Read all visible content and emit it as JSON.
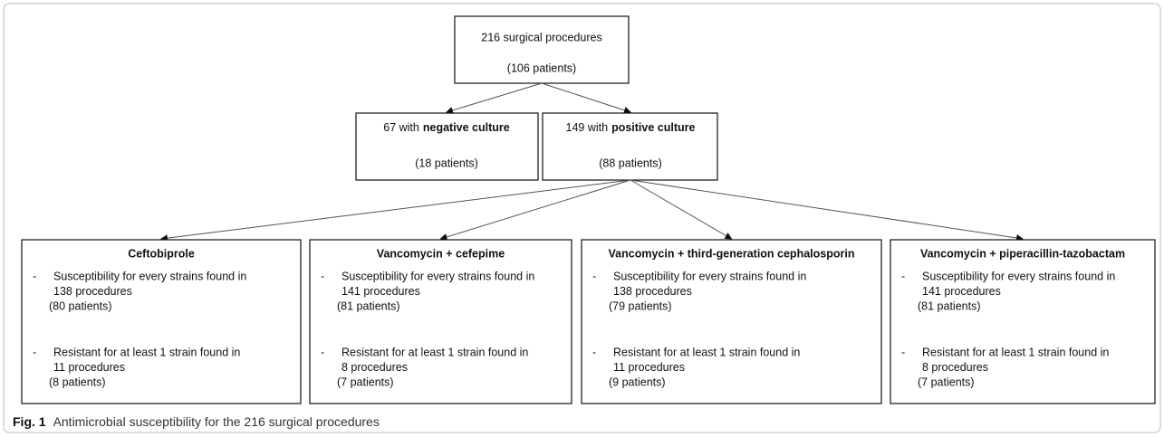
{
  "top": {
    "line1": "216 surgical procedures",
    "line2": "(106 patients)"
  },
  "negative": {
    "prefix": "67 with",
    "emphasis": "negative culture",
    "patients": "(18 patients)"
  },
  "positive": {
    "prefix": "149 with",
    "emphasis": "positive culture",
    "patients": "(88 patients)"
  },
  "bullet": "-",
  "regimens": [
    {
      "title": "Ceftobiprole",
      "items": [
        [
          "Susceptibility for every strains found in",
          "138 procedures",
          "(80 patients)"
        ],
        [
          "Resistant for at least 1 strain found in",
          "11 procedures",
          "(8 patients)"
        ]
      ]
    },
    {
      "title": "Vancomycin + cefepime",
      "items": [
        [
          "Susceptibility for every strains found in",
          "141 procedures",
          "(81 patients)"
        ],
        [
          "Resistant for at least 1 strain found in",
          "8 procedures",
          "(7 patients)"
        ]
      ]
    },
    {
      "title": "Vancomycin + third-generation cephalosporin",
      "items": [
        [
          "Susceptibility for every strains found in",
          "138 procedures",
          "(79 patients)"
        ],
        [
          "Resistant for at least 1 strain found in",
          "11 procedures",
          "(9 patients)"
        ]
      ]
    },
    {
      "title": "Vancomycin + piperacillin-tazobactam",
      "items": [
        [
          "Susceptibility for every strains found in",
          "141 procedures",
          "(81 patients)"
        ],
        [
          "Resistant for at least 1 strain found in",
          "8 procedures",
          "(7 patients)"
        ]
      ]
    }
  ],
  "caption": {
    "label": "Fig. 1",
    "text": "Antimicrobial susceptibility for the 216 surgical procedures"
  }
}
